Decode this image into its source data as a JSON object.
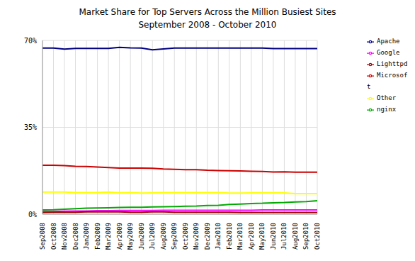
{
  "chart_data": {
    "type": "line",
    "title": "Market Share for Top Servers Across the Million Busiest Sites",
    "subtitle": "September 2008 - October 2010",
    "categories": [
      "Sep2008",
      "Oct2008",
      "Nov2008",
      "Dec2008",
      "Jan2009",
      "Feb2009",
      "Mar2009",
      "Apr2009",
      "May2009",
      "Jun2009",
      "Jul2009",
      "Aug2009",
      "Sep2009",
      "Oct2009",
      "Nov2009",
      "Dec2009",
      "Jan2010",
      "Feb2010",
      "Mar2010",
      "Apr2010",
      "May2010",
      "Jun2010",
      "Jul2010",
      "Aug2010",
      "Sep2010",
      "Oct2010"
    ],
    "series": [
      {
        "name": "Apache",
        "color": "#000080",
        "values": [
          66.9,
          66.9,
          66.5,
          66.8,
          66.8,
          66.8,
          66.8,
          67.2,
          67.0,
          66.9,
          66.2,
          66.6,
          66.9,
          66.9,
          66.9,
          66.9,
          66.9,
          66.9,
          66.9,
          66.9,
          66.9,
          66.7,
          66.7,
          66.7,
          66.7,
          66.7
        ]
      },
      {
        "name": "Microsoft",
        "color": "#cc0000",
        "values": [
          19.7,
          19.7,
          19.6,
          19.3,
          19.2,
          19.0,
          18.8,
          18.6,
          18.6,
          18.6,
          18.5,
          18.2,
          18.1,
          17.9,
          17.9,
          17.7,
          17.6,
          17.5,
          17.4,
          17.3,
          17.2,
          17.0,
          17.1,
          16.9,
          16.9,
          16.9
        ]
      },
      {
        "name": "Other",
        "color": "#ffff00",
        "values": [
          8.9,
          8.9,
          8.9,
          8.7,
          8.7,
          8.7,
          8.9,
          8.6,
          8.7,
          8.5,
          8.6,
          8.7,
          8.7,
          8.7,
          8.7,
          8.7,
          8.7,
          8.5,
          8.5,
          8.6,
          8.6,
          8.6,
          8.6,
          8.3,
          8.3,
          8.3
        ]
      },
      {
        "name": "nginx",
        "color": "#00aa00",
        "values": [
          1.7,
          1.8,
          2.0,
          2.2,
          2.4,
          2.5,
          2.6,
          2.7,
          2.8,
          2.8,
          2.9,
          3.0,
          3.1,
          3.2,
          3.3,
          3.5,
          3.6,
          3.9,
          4.1,
          4.3,
          4.4,
          4.6,
          4.7,
          4.9,
          5.1,
          5.4
        ]
      },
      {
        "name": "Google",
        "color": "#ff00ff",
        "values": [
          1.1,
          1.1,
          1.2,
          1.3,
          1.3,
          1.4,
          1.4,
          1.5,
          1.5,
          1.5,
          1.5,
          1.6,
          1.6,
          1.6,
          1.6,
          1.6,
          1.6,
          1.6,
          1.6,
          1.6,
          1.7,
          1.7,
          1.7,
          1.7,
          1.7,
          1.7
        ]
      },
      {
        "name": "Lighttpd",
        "color": "#990000",
        "values": [
          0.7,
          0.8,
          0.8,
          0.8,
          0.9,
          0.9,
          0.9,
          0.9,
          0.8,
          0.8,
          0.9,
          0.9,
          0.8,
          0.8,
          0.8,
          0.8,
          0.8,
          0.8,
          0.7,
          0.7,
          0.7,
          0.7,
          0.7,
          0.7,
          0.7,
          0.7
        ]
      }
    ],
    "ylim": [
      0,
      70
    ],
    "yticks": [
      {
        "value": 0,
        "label": "0%"
      },
      {
        "value": 35,
        "label": "35%"
      },
      {
        "value": 70,
        "label": "70%"
      }
    ],
    "grid": true,
    "legend": "right"
  }
}
